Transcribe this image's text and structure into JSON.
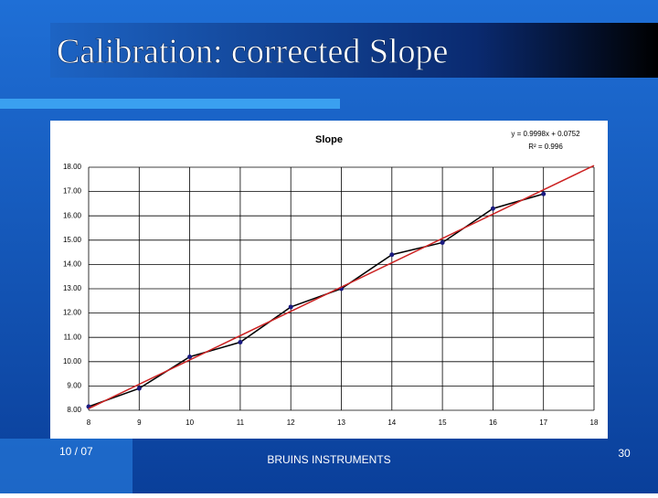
{
  "slide": {
    "title": "Calibration: corrected Slope",
    "date": "10 / 07",
    "footer": "BRUINS INSTRUMENTS",
    "page": "30"
  },
  "chart_data": {
    "type": "line",
    "title": "Slope",
    "annotations": [
      "y = 0.9998x + 0.0752",
      "R² = 0.996"
    ],
    "series": [
      {
        "color": "#000000",
        "marker_color": "#1a1a80",
        "x": [
          8,
          9,
          10,
          11,
          12,
          13,
          14,
          15,
          16,
          17
        ],
        "values": [
          8.15,
          8.9,
          10.2,
          10.8,
          12.25,
          13.0,
          14.4,
          14.9,
          16.3,
          16.9
        ]
      },
      {
        "color": "#cc2222",
        "x": [
          8,
          18
        ],
        "values": [
          8.07,
          18.07
        ]
      }
    ],
    "xlim": [
      8,
      18
    ],
    "ylim": [
      8,
      18
    ],
    "xticks": [
      8,
      9,
      10,
      11,
      12,
      13,
      14,
      15,
      16,
      17,
      18
    ],
    "yticks": [
      {
        "value": 8,
        "label": "8.00"
      },
      {
        "value": 9,
        "label": "9.00"
      },
      {
        "value": 10,
        "label": "10.00"
      },
      {
        "value": 11,
        "label": "11.00"
      },
      {
        "value": 12,
        "label": "12.00"
      },
      {
        "value": 13,
        "label": "13.00"
      },
      {
        "value": 14,
        "label": "14.00"
      },
      {
        "value": 15,
        "label": "15.00"
      },
      {
        "value": 16,
        "label": "16.00"
      },
      {
        "value": 17,
        "label": "17.00"
      },
      {
        "value": 18,
        "label": "18.00"
      }
    ],
    "grid": true
  }
}
